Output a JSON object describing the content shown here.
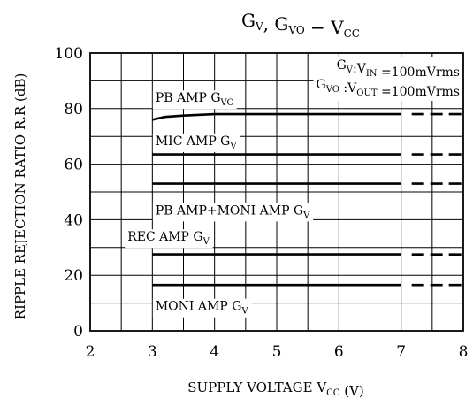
{
  "chart_data": {
    "type": "line",
    "title": {
      "parts": [
        {
          "text": "G",
          "sub": "V"
        },
        {
          "text": ",  G",
          "sub": "VO"
        },
        {
          "text": "  −  V",
          "sub": "CC"
        }
      ]
    },
    "xlabel": {
      "text": "SUPPLY VOLTAGE V",
      "sub": "CC",
      "tail": " (V)"
    },
    "ylabel": "RIPPLE REJECTION RATIO R.R (dB)",
    "xlim": [
      2,
      8
    ],
    "ylim": [
      0,
      100
    ],
    "xticks": [
      2,
      3,
      4,
      5,
      6,
      7,
      8
    ],
    "yticks": [
      0,
      20,
      40,
      60,
      80,
      100
    ],
    "x_grid_step": 0.5,
    "y_grid_step": 10,
    "grid": true,
    "conditions": [
      [
        {
          "text": "G",
          "sub": "V"
        },
        {
          "text": ":V",
          "sub": "IN"
        },
        {
          "text": " =100mVrms"
        }
      ],
      [
        {
          "text": "G",
          "sub": "VO"
        },
        {
          "text": " :V",
          "sub": "OUT"
        },
        {
          "text": " =100mVrms"
        }
      ]
    ],
    "series": [
      {
        "name": "PB AMP Gᵥₒ",
        "points": [
          [
            3.0,
            76
          ],
          [
            3.2,
            77
          ],
          [
            3.5,
            77.5
          ],
          [
            4.0,
            78
          ],
          [
            7.0,
            78
          ]
        ],
        "extrapolated": [
          [
            7.0,
            78
          ],
          [
            8.0,
            78
          ]
        ]
      },
      {
        "name": "MIC AMP Gᵥ",
        "points": [
          [
            3.0,
            63.5
          ],
          [
            7.0,
            63.5
          ]
        ],
        "extrapolated": [
          [
            7.0,
            63.5
          ],
          [
            8.0,
            63.5
          ]
        ]
      },
      {
        "name": "PB AMP+MONI AMP Gᵥ",
        "points": [
          [
            3.0,
            53
          ],
          [
            7.0,
            53
          ]
        ],
        "extrapolated": [
          [
            7.0,
            53
          ],
          [
            8.0,
            53
          ]
        ]
      },
      {
        "name": "REC AMP Gᵥ",
        "points": [
          [
            3.0,
            27.5
          ],
          [
            7.0,
            27.5
          ]
        ],
        "extrapolated": [
          [
            7.0,
            27.5
          ],
          [
            8.0,
            27.5
          ]
        ]
      },
      {
        "name": "MONI AMP Gᵥ",
        "points": [
          [
            3.0,
            16.5
          ],
          [
            7.0,
            16.5
          ]
        ],
        "extrapolated": [
          [
            7.0,
            16.5
          ],
          [
            8.0,
            16.5
          ]
        ]
      }
    ],
    "annotations": [
      {
        "id": "label-pb-amp",
        "parts": [
          {
            "text": "PB  AMP  G",
            "sub": "VO"
          }
        ],
        "x": 3.05,
        "y": 84
      },
      {
        "id": "label-mic-amp",
        "parts": [
          {
            "text": "MIC  AMP  G",
            "sub": "V"
          }
        ],
        "x": 3.05,
        "y": 68.5
      },
      {
        "id": "label-pb-moni-amp",
        "parts": [
          {
            "text": "PB  AMP+MONI  AMP  G",
            "sub": "V"
          }
        ],
        "x": 3.05,
        "y": 43.5
      },
      {
        "id": "label-rec-amp",
        "parts": [
          {
            "text": "REC  AMP  G",
            "sub": "V"
          }
        ],
        "x": 2.6,
        "y": 34
      },
      {
        "id": "label-moni-amp",
        "parts": [
          {
            "text": "MONI  AMP  G",
            "sub": "V"
          }
        ],
        "x": 3.05,
        "y": 9
      }
    ]
  }
}
